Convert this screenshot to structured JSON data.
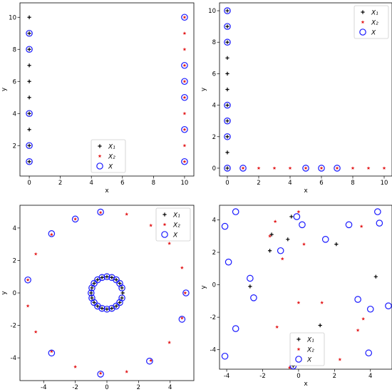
{
  "chart_data": [
    {
      "type": "scatter",
      "xlabel": "x",
      "ylabel": "y",
      "xlim": [
        -0.6,
        10.6
      ],
      "ylim": [
        0.1,
        10.9
      ],
      "xticks": [
        0,
        2,
        4,
        6,
        8,
        10
      ],
      "yticks": [
        2,
        4,
        6,
        8,
        10
      ],
      "legend": "lower-center",
      "series": [
        {
          "name": "X₁",
          "marker": "plus",
          "color": "#000000",
          "points": [
            [
              0,
              10
            ],
            [
              0,
              9
            ],
            [
              0,
              8
            ],
            [
              0,
              7
            ],
            [
              0,
              6
            ],
            [
              0,
              5
            ],
            [
              0,
              4
            ],
            [
              0,
              3
            ],
            [
              0,
              2
            ],
            [
              0,
              1
            ]
          ]
        },
        {
          "name": "X₂",
          "marker": "star",
          "color": "#e31a1c",
          "points": [
            [
              10,
              10
            ],
            [
              10,
              9
            ],
            [
              10,
              8
            ],
            [
              10,
              7
            ],
            [
              10,
              6
            ],
            [
              10,
              5
            ],
            [
              10,
              4
            ],
            [
              10,
              3
            ],
            [
              10,
              2
            ],
            [
              10,
              1
            ]
          ]
        },
        {
          "name": "X",
          "marker": "circle",
          "color": "#1a1aff",
          "points": [
            [
              0,
              9
            ],
            [
              0,
              8
            ],
            [
              0,
              4
            ],
            [
              0,
              2
            ],
            [
              0,
              1
            ],
            [
              10,
              10
            ],
            [
              10,
              7
            ],
            [
              10,
              6
            ],
            [
              10,
              5
            ],
            [
              10,
              3
            ],
            [
              10,
              1
            ]
          ]
        }
      ]
    },
    {
      "type": "scatter",
      "xlabel": "x",
      "ylabel": "y",
      "xlim": [
        -0.5,
        10.5
      ],
      "ylim": [
        -0.5,
        10.5
      ],
      "xticks": [
        0,
        2,
        4,
        6,
        8,
        10
      ],
      "yticks": [
        0,
        2,
        4,
        6,
        8,
        10
      ],
      "legend": "upper-right",
      "series": [
        {
          "name": "X₁",
          "marker": "plus",
          "color": "#000000",
          "points": [
            [
              0,
              10
            ],
            [
              0,
              9
            ],
            [
              0,
              8
            ],
            [
              0,
              7
            ],
            [
              0,
              6
            ],
            [
              0,
              5
            ],
            [
              0,
              4
            ],
            [
              0,
              3
            ],
            [
              0,
              2
            ],
            [
              0,
              1
            ],
            [
              0,
              0
            ]
          ]
        },
        {
          "name": "X₂",
          "marker": "star",
          "color": "#e31a1c",
          "points": [
            [
              1,
              0
            ],
            [
              2,
              0
            ],
            [
              3,
              0
            ],
            [
              4,
              0
            ],
            [
              5,
              0
            ],
            [
              6,
              0
            ],
            [
              7,
              0
            ],
            [
              8,
              0
            ],
            [
              9,
              0
            ],
            [
              10,
              0
            ]
          ]
        },
        {
          "name": "X",
          "marker": "circle",
          "color": "#1a1aff",
          "points": [
            [
              0,
              10
            ],
            [
              0,
              9
            ],
            [
              0,
              8
            ],
            [
              0,
              4
            ],
            [
              0,
              3
            ],
            [
              0,
              2
            ],
            [
              0,
              0
            ],
            [
              1,
              0
            ],
            [
              5,
              0
            ],
            [
              6,
              0
            ],
            [
              7,
              0
            ]
          ]
        }
      ]
    },
    {
      "type": "scatter",
      "xlabel": "x",
      "ylabel": "y",
      "xlim": [
        -5.5,
        5.5
      ],
      "ylim": [
        -5.4,
        5.4
      ],
      "xticks": [
        -4,
        -2,
        0,
        2,
        4
      ],
      "yticks": [
        -4,
        -2,
        0,
        2,
        4
      ],
      "legend": "upper-right",
      "series": [
        {
          "name": "X₁",
          "marker": "plus",
          "color": "#000000",
          "points": [
            [
              1,
              0
            ],
            [
              0.95,
              0.31
            ],
            [
              0.81,
              0.59
            ],
            [
              0.59,
              0.81
            ],
            [
              0.31,
              0.95
            ],
            [
              0,
              1
            ],
            [
              -0.31,
              0.95
            ],
            [
              -0.59,
              0.81
            ],
            [
              -0.81,
              0.59
            ],
            [
              -0.95,
              0.31
            ],
            [
              -1,
              0
            ],
            [
              -0.95,
              -0.31
            ],
            [
              -0.81,
              -0.59
            ],
            [
              -0.59,
              -0.81
            ],
            [
              -0.31,
              -0.95
            ],
            [
              0,
              -1
            ],
            [
              0.31,
              -0.95
            ],
            [
              0.59,
              -0.81
            ],
            [
              0.81,
              -0.59
            ],
            [
              0.95,
              -0.31
            ]
          ]
        },
        {
          "name": "X₂",
          "marker": "star",
          "color": "#e31a1c",
          "points": [
            [
              1.25,
              4.85
            ],
            [
              2.78,
              4.16
            ],
            [
              3.95,
              3.05
            ],
            [
              4.75,
              1.55
            ],
            [
              4.95,
              0
            ],
            [
              4.75,
              -1.55
            ],
            [
              3.95,
              -3.05
            ],
            [
              2.78,
              -4.16
            ],
            [
              1.25,
              -4.85
            ],
            [
              -0.4,
              -4.95
            ],
            [
              -2,
              -4.55
            ],
            [
              -3.5,
              -3.6
            ],
            [
              -4.5,
              -2.4
            ],
            [
              -5,
              -0.8
            ],
            [
              -5,
              0.8
            ],
            [
              -4.5,
              2.4
            ],
            [
              -3.5,
              3.6
            ],
            [
              -2,
              4.55
            ],
            [
              -0.4,
              4.95
            ]
          ]
        },
        {
          "name": "X",
          "marker": "circle",
          "color": "#1a1aff",
          "points": [
            [
              -0.4,
              4.98
            ],
            [
              -2,
              4.55
            ],
            [
              -3.5,
              3.65
            ],
            [
              -5,
              0.8
            ],
            [
              5,
              0
            ],
            [
              4.75,
              -1.62
            ],
            [
              2.7,
              -4.2
            ],
            [
              -0.4,
              -5
            ],
            [
              -3.5,
              -3.7
            ],
            [
              0.95,
              0.31
            ],
            [
              0.81,
              0.59
            ],
            [
              0.59,
              0.81
            ],
            [
              0.31,
              0.95
            ],
            [
              0,
              1
            ],
            [
              -0.31,
              0.95
            ],
            [
              -0.59,
              0.81
            ],
            [
              -0.81,
              0.59
            ],
            [
              -0.95,
              0.31
            ],
            [
              -1,
              0
            ],
            [
              -0.95,
              -0.31
            ],
            [
              -0.81,
              -0.59
            ],
            [
              -0.59,
              -0.81
            ],
            [
              -0.31,
              -0.95
            ],
            [
              0,
              -1
            ],
            [
              0.31,
              -0.95
            ],
            [
              0.59,
              -0.81
            ],
            [
              0.81,
              -0.59
            ],
            [
              0.95,
              -0.31
            ]
          ]
        }
      ]
    },
    {
      "type": "scatter",
      "xlabel": "x",
      "ylabel": "y",
      "xlim": [
        -4.4,
        5.2
      ],
      "ylim": [
        -5.2,
        4.9
      ],
      "xticks": [
        -4,
        -2,
        0,
        2,
        4
      ],
      "yticks": [
        -4,
        -2,
        0,
        2,
        4
      ],
      "legend": "lower-center",
      "series": [
        {
          "name": "X₁",
          "marker": "plus",
          "color": "#000000",
          "points": [
            [
              -1.5,
              3.1
            ],
            [
              -1.6,
              2.1
            ],
            [
              -0.6,
              2.8
            ],
            [
              -2.7,
              -0.1
            ],
            [
              2.1,
              2.5
            ],
            [
              1.2,
              -2.5
            ],
            [
              0.9,
              -3.3
            ],
            [
              4.3,
              0.5
            ],
            [
              -0.3,
              -5
            ],
            [
              -0.4,
              4.2
            ]
          ]
        },
        {
          "name": "X₂",
          "marker": "star",
          "color": "#e31a1c",
          "points": [
            [
              -1.3,
              3.9
            ],
            [
              -1.6,
              3.0
            ],
            [
              -0.9,
              1.6
            ],
            [
              0.3,
              2.5
            ],
            [
              0,
              4.5
            ],
            [
              3.5,
              3.6
            ],
            [
              1.3,
              -1.1
            ],
            [
              -1.2,
              -2.6
            ],
            [
              3.3,
              -2.8
            ],
            [
              3.6,
              -2.1
            ],
            [
              2.3,
              -4.6
            ],
            [
              -0.5,
              -5.1
            ],
            [
              0,
              -1.1
            ]
          ]
        },
        {
          "name": "X",
          "marker": "circle",
          "color": "#1a1aff",
          "points": [
            [
              -3.5,
              4.5
            ],
            [
              -4.1,
              3.6
            ],
            [
              -3.9,
              1.4
            ],
            [
              -2.7,
              0.4
            ],
            [
              -2.5,
              -0.8
            ],
            [
              -3.5,
              -2.7
            ],
            [
              -4.1,
              -4.4
            ],
            [
              -1.0,
              2.1
            ],
            [
              -0.1,
              4.2
            ],
            [
              0.2,
              3.7
            ],
            [
              1.5,
              2.8
            ],
            [
              2.8,
              3.7
            ],
            [
              4.4,
              4.5
            ],
            [
              4.5,
              3.8
            ],
            [
              3.3,
              -0.9
            ],
            [
              4,
              -1.5
            ],
            [
              5,
              -1.3
            ],
            [
              3.9,
              -4.2
            ],
            [
              -0.3,
              -5
            ]
          ]
        }
      ]
    }
  ]
}
